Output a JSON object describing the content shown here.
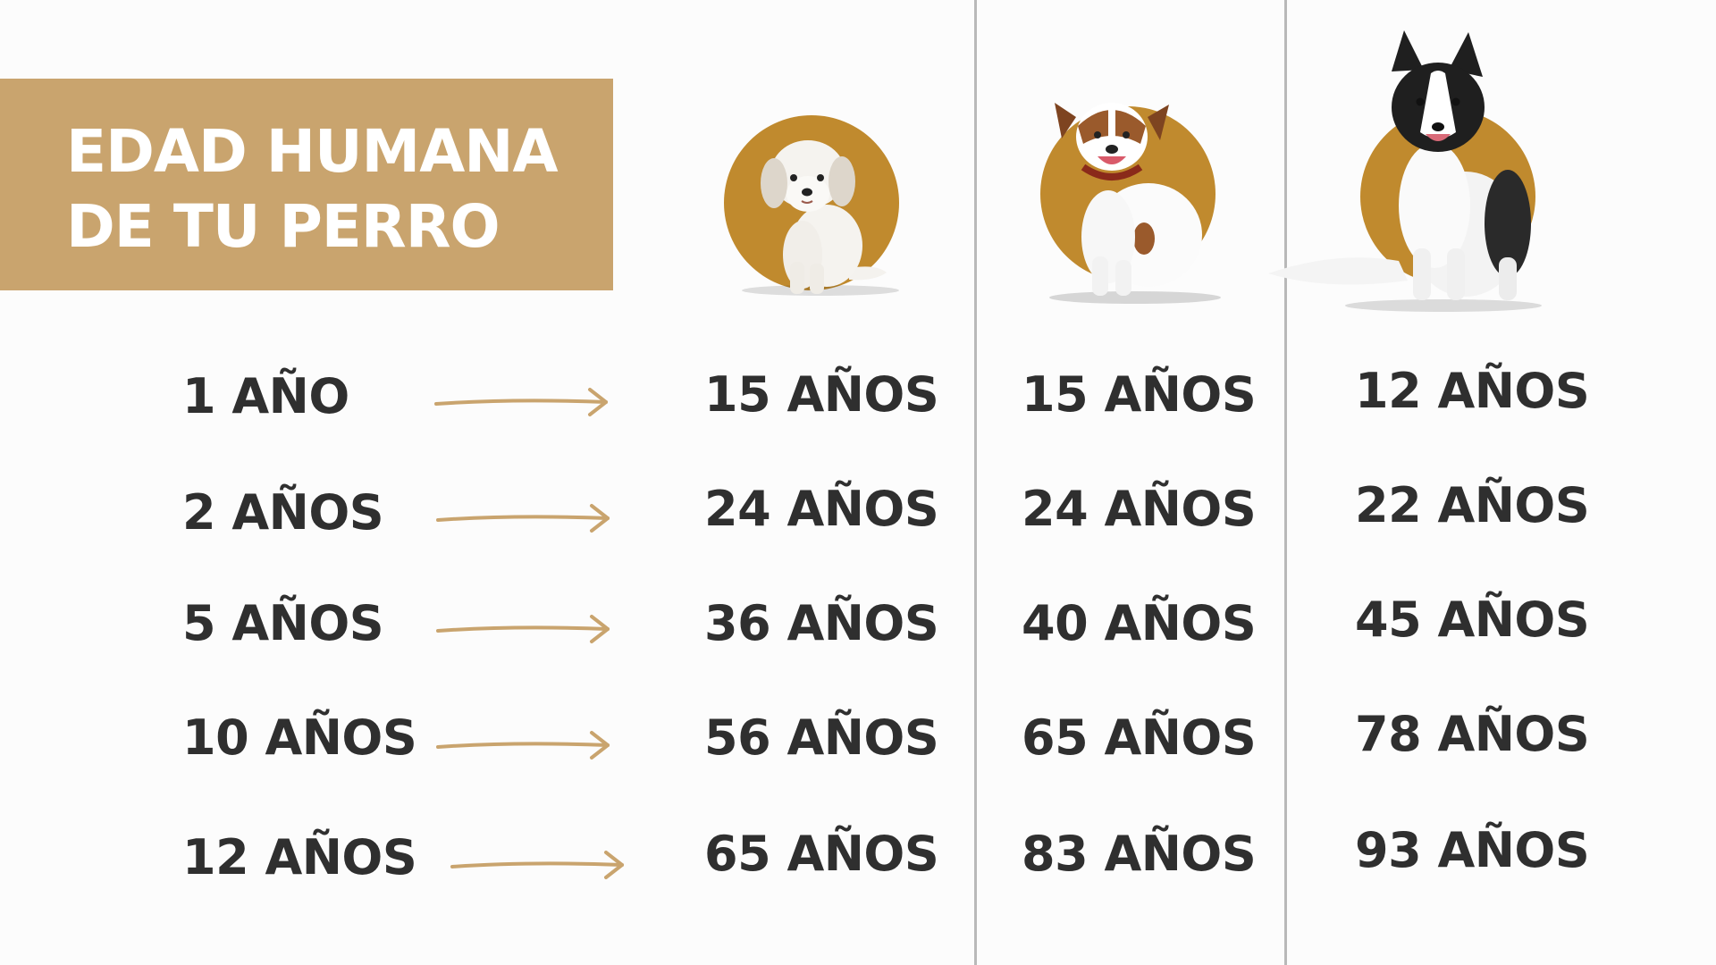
{
  "title": {
    "line1": "EDAD HUMANA",
    "line2": "DE TU PERRO"
  },
  "colors": {
    "accent": "#c9a46e",
    "circle": "#c08a2e",
    "text": "#2f2f2f",
    "divider": "#b9b9b9"
  },
  "dog_ages": [
    "1 AÑO",
    "2 AÑOS",
    "5 AÑOS",
    "10 AÑOS",
    "12 AÑOS"
  ],
  "breeds": [
    {
      "image": "small-white-fluffy-dog",
      "human_ages": [
        "15 AÑOS",
        "24 AÑOS",
        "36 AÑOS",
        "56 AÑOS",
        "65 AÑOS"
      ]
    },
    {
      "image": "jack-russell-terrier",
      "human_ages": [
        "15 AÑOS",
        "24 AÑOS",
        "40 AÑOS",
        "65 AÑOS",
        "83 AÑOS"
      ]
    },
    {
      "image": "border-collie",
      "human_ages": [
        "12 AÑOS",
        "22 AÑOS",
        "45 AÑOS",
        "78 AÑOS",
        "93 AÑOS"
      ]
    }
  ]
}
